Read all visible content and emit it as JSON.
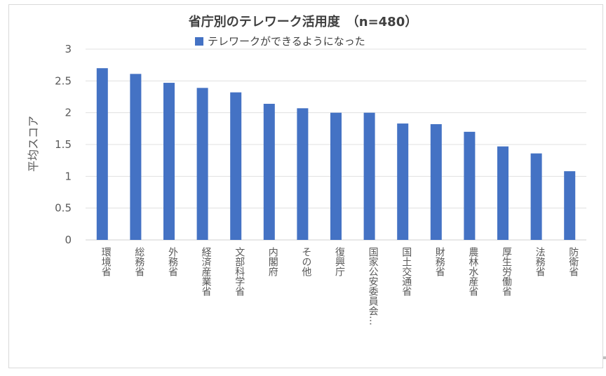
{
  "chart_data": {
    "type": "bar",
    "title": "省庁別のテレワーク活用度　（n=480）",
    "ylabel": "平均スコア",
    "xlabel": "",
    "ylim": [
      0,
      3
    ],
    "yticks": [
      "0",
      "0.5",
      "1",
      "1.5",
      "2",
      "2.5",
      "3"
    ],
    "grid": true,
    "legend_position": "top",
    "categories": [
      "環境省",
      "総務省",
      "外務省",
      "経済産業省",
      "文部科学省",
      "内閣府",
      "その他",
      "復興庁",
      "国家公安委員会…",
      "国土交通省",
      "財務省",
      "農林水産省",
      "厚生労働省",
      "法務省",
      "防衛省"
    ],
    "series": [
      {
        "name": "テレワークができるようになった",
        "color": "#4472c4",
        "values": [
          2.7,
          2.61,
          2.47,
          2.39,
          2.32,
          2.14,
          2.07,
          2.0,
          2.0,
          1.83,
          1.82,
          1.7,
          1.47,
          1.36,
          1.08
        ]
      }
    ]
  }
}
